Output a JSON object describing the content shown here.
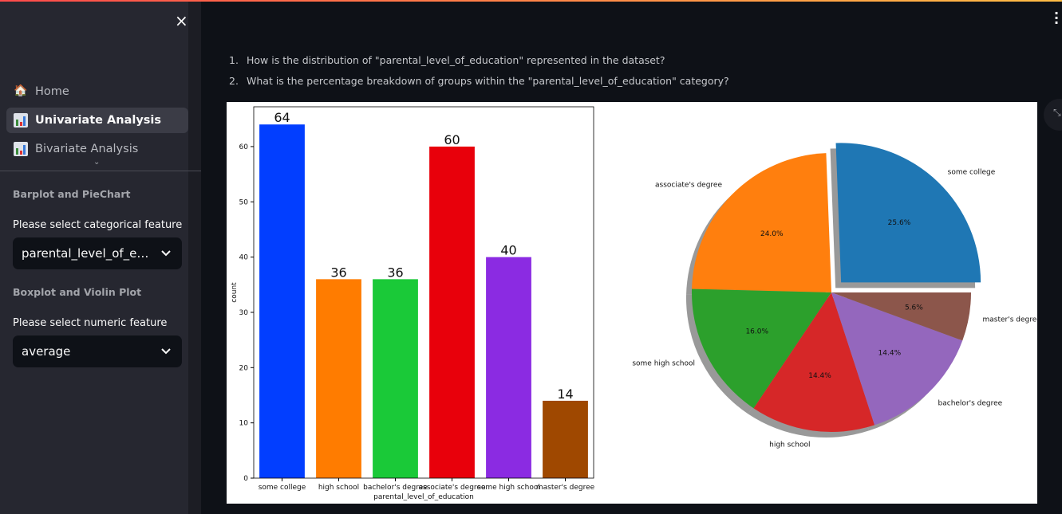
{
  "sidebar": {
    "close_icon": "×",
    "nav": [
      {
        "label": "Home",
        "icon": "house-icon"
      },
      {
        "label": "Univariate Analysis",
        "icon": "bar-chart-icon",
        "active": true
      },
      {
        "label": "Bivariate Analysis",
        "icon": "bar-chart-icon"
      }
    ],
    "section1": "Barplot and PieChart",
    "cat_label": "Please select categorical feature",
    "cat_value": "parental_level_of_e…",
    "section2": "Boxplot and Violin Plot",
    "num_label": "Please select numeric feature",
    "num_value": "average"
  },
  "main": {
    "questions": [
      {
        "n": "1.",
        "text": "How is the distribution of \"parental_level_of_education\" represented in the dataset?"
      },
      {
        "n": "2.",
        "text": "What is the percentage breakdown of groups within the \"parental_level_of_education\" category?"
      }
    ]
  },
  "chart_data": [
    {
      "type": "bar",
      "categories": [
        "some college",
        "high school",
        "bachelor's degree",
        "associate's degree",
        "some high school",
        "master's degree"
      ],
      "values": [
        64,
        36,
        36,
        60,
        40,
        14
      ],
      "xlabel": "parental_level_of_education",
      "ylabel": "count",
      "ylim": [
        0,
        67.2
      ],
      "yticks": [
        0,
        10,
        20,
        30,
        40,
        50,
        60
      ],
      "colors": [
        "#023eff",
        "#ff7c00",
        "#1ac938",
        "#e8000b",
        "#8b2be2",
        "#9f4800"
      ]
    },
    {
      "type": "pie",
      "labels": [
        "some college",
        "associate's degree",
        "some high school",
        "high school",
        "bachelor's degree",
        "master's degree"
      ],
      "values": [
        25.6,
        24.0,
        16.0,
        14.4,
        14.4,
        5.6
      ],
      "pct_labels": [
        "25.6%",
        "24.0%",
        "16.0%",
        "14.4%",
        "14.4%",
        "5.6%"
      ],
      "explode": [
        0.1,
        0,
        0,
        0,
        0,
        0
      ],
      "startangle": 0,
      "shadow": true,
      "colors": [
        "#1f77b4",
        "#ff7f0e",
        "#2ca02c",
        "#d62728",
        "#9467bd",
        "#8c564b"
      ]
    }
  ]
}
